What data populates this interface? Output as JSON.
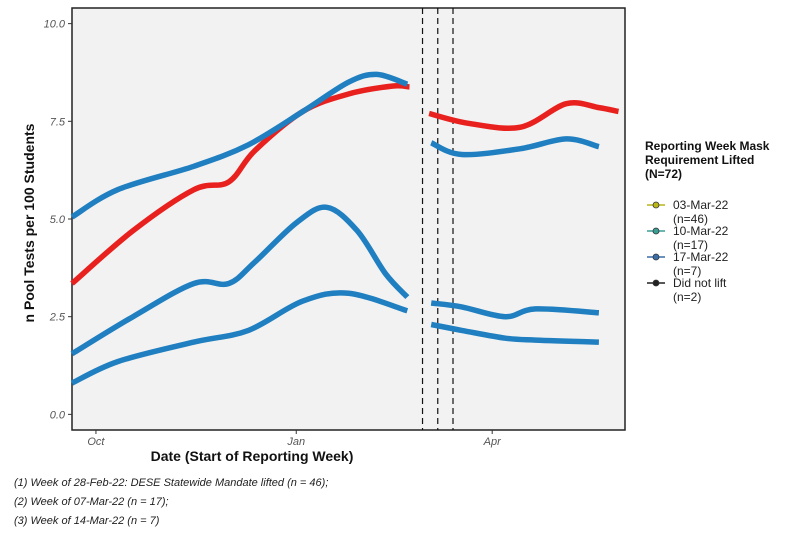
{
  "chart_data": {
    "type": "line",
    "xlabel": "Date (Start of Reporting Week)",
    "ylabel": "n Pool Tests per 100 Students",
    "x_ticks": [
      {
        "label": "Oct",
        "date": "2021-10-01"
      },
      {
        "label": "Jan",
        "date": "2022-01-01"
      },
      {
        "label": "Apr",
        "date": "2022-04-01"
      }
    ],
    "xlim": [
      "2021-09-20",
      "2022-06-01"
    ],
    "y_ticks": [
      0.0,
      2.5,
      5.0,
      7.5,
      10.0
    ],
    "y_tick_labels": [
      "0.0",
      "2.5",
      "5.0",
      "7.5",
      "10.0"
    ],
    "ylim": [
      -0.4,
      10.4
    ],
    "grid": false,
    "background": "#f2f2f2",
    "vlines": [
      "2022-02-28",
      "2022-03-07",
      "2022-03-14"
    ],
    "legend": {
      "position": "right",
      "title_lines": [
        "Reporting Week Mask",
        "Requirement Lifted",
        "(N=72)"
      ],
      "entries": [
        {
          "lines": [
            "03-Mar-22",
            "(n=46)"
          ],
          "color": "#b8b61a"
        },
        {
          "lines": [
            "10-Mar-22",
            "(n=17)"
          ],
          "color": "#3a9e95"
        },
        {
          "lines": [
            "17-Mar-22",
            "(n=7)"
          ],
          "color": "#3a6ea8"
        },
        {
          "lines": [
            "Did not lift",
            "(n=2)"
          ],
          "color": "#222222"
        }
      ]
    },
    "series": [
      {
        "color": "#e8211e",
        "segments": [
          [
            [
              "2021-09-20",
              3.35
            ],
            [
              "2021-10-18",
              4.7
            ],
            [
              "2021-11-15",
              5.75
            ],
            [
              "2021-12-01",
              5.95
            ],
            [
              "2021-12-13",
              6.75
            ],
            [
              "2022-01-04",
              7.75
            ],
            [
              "2022-01-25",
              8.2
            ],
            [
              "2022-02-14",
              8.4
            ],
            [
              "2022-02-22",
              8.38
            ]
          ],
          [
            [
              "2022-03-03",
              7.7
            ],
            [
              "2022-03-21",
              7.45
            ],
            [
              "2022-04-14",
              7.35
            ],
            [
              "2022-05-05",
              7.95
            ],
            [
              "2022-05-20",
              7.85
            ],
            [
              "2022-05-29",
              7.75
            ]
          ]
        ]
      },
      {
        "color": "#1f7fc0",
        "segments": [
          [
            [
              "2021-09-20",
              5.05
            ],
            [
              "2021-10-11",
              5.75
            ],
            [
              "2021-11-15",
              6.35
            ],
            [
              "2021-12-10",
              6.9
            ],
            [
              "2022-01-04",
              7.75
            ],
            [
              "2022-01-25",
              8.5
            ],
            [
              "2022-02-07",
              8.7
            ],
            [
              "2022-02-21",
              8.45
            ]
          ],
          [
            [
              "2022-03-04",
              6.95
            ],
            [
              "2022-03-18",
              6.65
            ],
            [
              "2022-04-14",
              6.8
            ],
            [
              "2022-05-05",
              7.05
            ],
            [
              "2022-05-20",
              6.85
            ]
          ]
        ]
      },
      {
        "color": "#1f7fc0",
        "segments": [
          [
            [
              "2021-09-20",
              1.55
            ],
            [
              "2021-10-18",
              2.5
            ],
            [
              "2021-11-15",
              3.35
            ],
            [
              "2021-12-01",
              3.35
            ],
            [
              "2021-12-13",
              3.9
            ],
            [
              "2022-01-01",
              4.9
            ],
            [
              "2022-01-15",
              5.3
            ],
            [
              "2022-01-29",
              4.7
            ],
            [
              "2022-02-11",
              3.6
            ],
            [
              "2022-02-21",
              3.0
            ]
          ],
          [
            [
              "2022-03-04",
              2.85
            ],
            [
              "2022-03-18",
              2.75
            ],
            [
              "2022-04-07",
              2.5
            ],
            [
              "2022-04-21",
              2.7
            ],
            [
              "2022-05-20",
              2.6
            ]
          ]
        ]
      },
      {
        "color": "#1f7fc0",
        "segments": [
          [
            [
              "2021-09-20",
              0.8
            ],
            [
              "2021-10-11",
              1.35
            ],
            [
              "2021-11-15",
              1.85
            ],
            [
              "2021-12-10",
              2.15
            ],
            [
              "2022-01-04",
              2.9
            ],
            [
              "2022-01-25",
              3.1
            ],
            [
              "2022-02-21",
              2.65
            ]
          ],
          [
            [
              "2022-03-04",
              2.3
            ],
            [
              "2022-03-18",
              2.15
            ],
            [
              "2022-04-07",
              1.95
            ],
            [
              "2022-04-21",
              1.9
            ],
            [
              "2022-05-20",
              1.85
            ]
          ]
        ]
      }
    ]
  },
  "footnotes": [
    "(1) Week of 28-Feb-22: DESE Statewide Mandate lifted (n = 46);",
    "(2) Week of 07-Mar-22 (n = 17);",
    "(3) Week of 14-Mar-22 (n = 7)"
  ]
}
